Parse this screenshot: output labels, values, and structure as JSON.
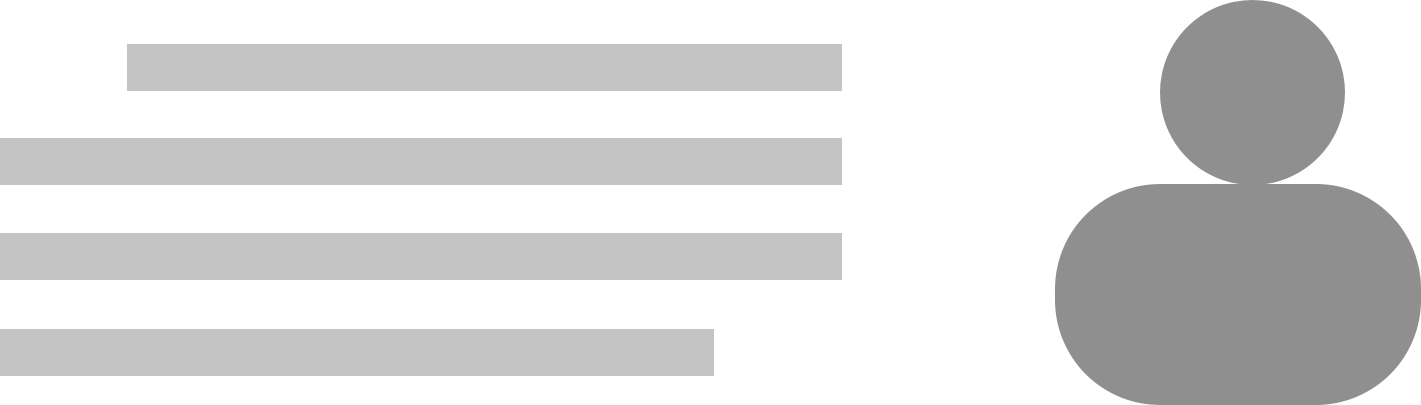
{
  "colors": {
    "background": "#ffffff",
    "text_placeholder": "#c4c4c4",
    "icon": "#8f8f8f"
  },
  "text_block": {
    "lines": [
      {
        "name": "placeholder-line-1"
      },
      {
        "name": "placeholder-line-2"
      },
      {
        "name": "placeholder-line-3"
      },
      {
        "name": "placeholder-line-4"
      }
    ]
  },
  "icon": {
    "name": "user-icon"
  }
}
